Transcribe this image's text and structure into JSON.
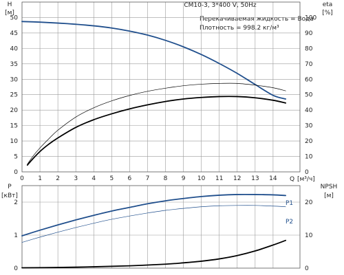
{
  "chart_data": [
    {
      "type": "line",
      "title": "CM10-3, 3*400 V, 50Hz",
      "annotations": [
        "Перекачиваемая жидкость = Вода",
        "Плотность = 998.2 кг/м³"
      ],
      "xlabel": "Q [м³/ч]",
      "xlabel_name": "Q",
      "xlabel_unit": "[м³/ч]",
      "xlim": [
        0,
        15.5
      ],
      "xticks": [
        0,
        1,
        2,
        3,
        4,
        5,
        6,
        7,
        8,
        9,
        10,
        11,
        12,
        13,
        14
      ],
      "y_left": {
        "label": "H",
        "unit": "[м]",
        "ylim": [
          0,
          55
        ],
        "ticks": [
          0,
          5,
          10,
          15,
          20,
          25,
          30,
          35,
          40,
          45,
          50
        ]
      },
      "y_right": {
        "label": "eta",
        "unit": "[%]",
        "ylim": [
          0,
          110
        ],
        "ticks": [
          0,
          10,
          20,
          30,
          40,
          50,
          60,
          70,
          80,
          90,
          100
        ]
      },
      "grid": true,
      "series": [
        {
          "axis": "left",
          "color": "#1f4e8c",
          "width": 1.8,
          "x": [
            0,
            1,
            2,
            3,
            4,
            5,
            6,
            7,
            8,
            9,
            10,
            11,
            12,
            13,
            14,
            14.7
          ],
          "y": [
            48.7,
            48.5,
            48.2,
            47.8,
            47.3,
            46.6,
            45.6,
            44.3,
            42.6,
            40.5,
            38.0,
            35.1,
            31.9,
            28.3,
            24.8,
            23.6
          ]
        },
        {
          "axis": "left",
          "color": "#000000",
          "width": 1.8,
          "x": [
            0.3,
            0.6,
            1,
            1.5,
            2,
            3,
            4,
            5,
            6,
            7,
            8,
            9,
            10,
            11,
            12,
            13,
            14,
            14.7
          ],
          "y": [
            2.2,
            4.2,
            6.6,
            9.0,
            11.0,
            14.4,
            16.9,
            18.8,
            20.4,
            21.7,
            22.8,
            23.6,
            24.1,
            24.4,
            24.4,
            24.0,
            23.2,
            22.3
          ]
        },
        {
          "axis": "right",
          "color": "#000000",
          "width": 0.7,
          "x": [
            0.3,
            0.6,
            1,
            1.5,
            2,
            3,
            4,
            5,
            6,
            7,
            8,
            9,
            10,
            11,
            12,
            13,
            14,
            14.7
          ],
          "y": [
            5.0,
            10.0,
            15.5,
            21.5,
            27.0,
            35.5,
            41.5,
            46.0,
            49.5,
            52.2,
            54.2,
            55.8,
            56.8,
            57.3,
            57.3,
            56.2,
            54.5,
            52.5
          ]
        }
      ]
    },
    {
      "type": "line",
      "xlim": [
        0,
        15.5
      ],
      "y_left": {
        "label": "P",
        "unit": "[кВт]",
        "ylim": [
          0,
          2.5
        ],
        "ticks": [
          0,
          1,
          2
        ]
      },
      "y_right": {
        "label": "NPSH",
        "unit": "[м]",
        "ylim": [
          0,
          25
        ],
        "ticks": [
          0,
          10,
          20
        ]
      },
      "grid": true,
      "series": [
        {
          "name": "P1",
          "axis": "left",
          "color": "#1f4e8c",
          "width": 1.8,
          "x": [
            0,
            1,
            2,
            3,
            4,
            5,
            6,
            7,
            8,
            9,
            10,
            11,
            12,
            13,
            14,
            14.7
          ],
          "y": [
            0.98,
            1.15,
            1.31,
            1.46,
            1.6,
            1.73,
            1.84,
            1.95,
            2.04,
            2.11,
            2.17,
            2.21,
            2.23,
            2.23,
            2.22,
            2.2
          ]
        },
        {
          "name": "P2",
          "axis": "left",
          "color": "#1f4e8c",
          "width": 0.7,
          "x": [
            0,
            1,
            2,
            3,
            4,
            5,
            6,
            7,
            8,
            9,
            10,
            11,
            12,
            13,
            14,
            14.7
          ],
          "y": [
            0.78,
            0.94,
            1.09,
            1.23,
            1.36,
            1.48,
            1.58,
            1.67,
            1.75,
            1.81,
            1.86,
            1.89,
            1.9,
            1.9,
            1.88,
            1.86
          ]
        },
        {
          "axis": "right",
          "color": "#000000",
          "width": 1.8,
          "x": [
            0,
            2,
            4,
            6,
            8,
            9,
            10,
            11,
            12,
            13,
            14,
            14.7
          ],
          "y": [
            0.1,
            0.2,
            0.4,
            0.7,
            1.2,
            1.6,
            2.1,
            2.8,
            3.8,
            5.2,
            7.0,
            8.4
          ]
        }
      ]
    }
  ]
}
